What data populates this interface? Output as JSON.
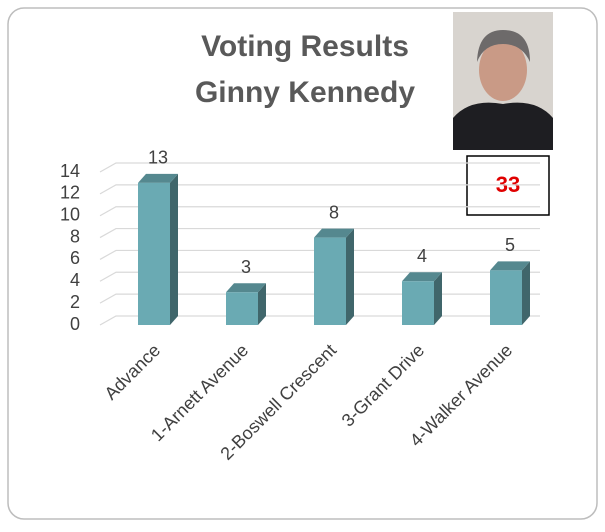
{
  "chart_data": {
    "type": "bar",
    "title": "Voting Results",
    "subtitle": "Ginny Kennedy",
    "total": 33,
    "categories": [
      "Advance",
      "1-Arnett Avenue",
      "2-Boswell Crescent",
      "3-Grant Drive",
      "4-Walker Avenue"
    ],
    "values": [
      13,
      3,
      8,
      4,
      5
    ],
    "color": "#6aaab3",
    "ylim": [
      0,
      14
    ],
    "yticks": [
      0,
      2,
      4,
      6,
      8,
      10,
      12,
      14
    ],
    "grid": true
  }
}
